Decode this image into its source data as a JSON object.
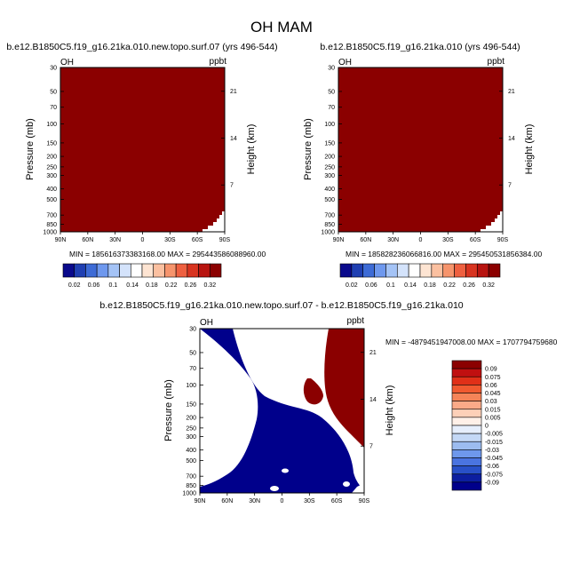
{
  "figure_title": "OH MAM",
  "colors": {
    "high_fill": "#8b0000",
    "low_fill": "#00008b",
    "background": "#ffffff"
  },
  "chart_data": [
    {
      "type": "heatmap",
      "title": "b.e12.B1850C5.f19_g16.21ka.010.new.topo.surf.07 (yrs 496-544)",
      "left_label": "OH",
      "right_label": "ppbt",
      "ylabel": "Pressure (mb)",
      "y2label": "Height (km)",
      "xticks": [
        "90N",
        "60N",
        "30N",
        "0",
        "30S",
        "60S",
        "90S"
      ],
      "yticks": [
        "30",
        "50",
        "70",
        "100",
        "150",
        "200",
        "250",
        "300",
        "400",
        "500",
        "700",
        "850",
        "1000"
      ],
      "y2ticks": [
        "21",
        "14",
        "7"
      ],
      "stats": "MIN = 185616373383168.00   MAX = 295443586088960.00",
      "field": "saturated above colorbar maximum everywhere except near-surface south polar region"
    },
    {
      "type": "heatmap",
      "title": "b.e12.B1850C5.f19_g16.21ka.010 (yrs 496-544)",
      "left_label": "OH",
      "right_label": "ppbt",
      "ylabel": "Pressure (mb)",
      "y2label": "Height (km)",
      "xticks": [
        "90N",
        "60N",
        "30N",
        "0",
        "30S",
        "60S",
        "90S"
      ],
      "yticks": [
        "30",
        "50",
        "70",
        "100",
        "150",
        "200",
        "250",
        "300",
        "400",
        "500",
        "700",
        "850",
        "1000"
      ],
      "y2ticks": [
        "21",
        "14",
        "7"
      ],
      "stats": "MIN = 185828236066816.00   MAX = 295450531856384.00",
      "field": "saturated above colorbar maximum everywhere except near-surface south polar region"
    },
    {
      "type": "heatmap",
      "title": "b.e12.B1850C5.f19_g16.21ka.010.new.topo.surf.07 - b.e12.B1850C5.f19_g16.21ka.010",
      "left_label": "OH",
      "right_label": "ppbt",
      "ylabel": "Pressure (mb)",
      "y2label": "Height (km)",
      "xticks": [
        "90N",
        "60N",
        "30N",
        "0",
        "30S",
        "60S",
        "90S"
      ],
      "yticks": [
        "30",
        "50",
        "70",
        "100",
        "150",
        "200",
        "250",
        "300",
        "400",
        "500",
        "700",
        "850",
        "1000"
      ],
      "y2ticks": [
        "21",
        "14",
        "7"
      ],
      "stats": "MIN = -4879451947008.00   MAX = 1707794759680",
      "field": "difference: strongly negative over most of the domain, strongly positive in the southern high latitudes"
    }
  ],
  "colorbars": {
    "top": {
      "labels": [
        "0.02",
        "0.06",
        "0.1",
        "0.14",
        "0.18",
        "0.22",
        "0.26",
        "0.32"
      ],
      "colors": [
        "#0a0a8c",
        "#1f3fb2",
        "#3d6bd6",
        "#6e98ee",
        "#a4c3f6",
        "#d4e3fb",
        "#ffffff",
        "#fde4d2",
        "#fbc0a0",
        "#f6946c",
        "#ee6040",
        "#d83420",
        "#b81410",
        "#8b0000"
      ]
    },
    "diff": {
      "labels": [
        "0.09",
        "0.075",
        "0.06",
        "0.045",
        "0.03",
        "0.015",
        "0.005",
        "0",
        "-0.005",
        "-0.015",
        "-0.03",
        "-0.045",
        "-0.06",
        "-0.075",
        "-0.09"
      ],
      "colors": [
        "#8b0000",
        "#c01010",
        "#e03018",
        "#f05a30",
        "#f58458",
        "#faaa88",
        "#fdd0b8",
        "#fff0e8",
        "#e6eefc",
        "#c4d8f6",
        "#9cbcf0",
        "#6e98ec",
        "#4a74e0",
        "#2850c8",
        "#0c1ea0",
        "#00008b"
      ]
    }
  }
}
